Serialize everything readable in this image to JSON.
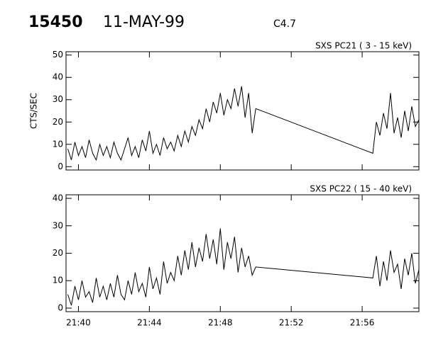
{
  "header": {
    "id": "15450",
    "date": "11-MAY-99",
    "flare_class": "C4.7"
  },
  "chart_data": [
    {
      "type": "line",
      "title": "SXS PC21  (  3 - 15 keV)",
      "ylabel": "CTS/SEC",
      "x": [
        1299.4,
        1299.6,
        1299.8,
        1300.0,
        1300.2,
        1300.4,
        1300.6,
        1300.8,
        1301.0,
        1301.2,
        1301.4,
        1301.6,
        1301.8,
        1302.0,
        1302.2,
        1302.4,
        1302.6,
        1302.8,
        1303.0,
        1303.2,
        1303.4,
        1303.6,
        1303.8,
        1304.0,
        1304.2,
        1304.4,
        1304.6,
        1304.8,
        1305.0,
        1305.2,
        1305.4,
        1305.6,
        1305.8,
        1306.0,
        1306.2,
        1306.4,
        1306.6,
        1306.8,
        1307.0,
        1307.2,
        1307.4,
        1307.6,
        1307.8,
        1308.0,
        1308.2,
        1308.4,
        1308.6,
        1308.8,
        1309.0,
        1309.2,
        1309.4,
        1309.6,
        1309.8,
        1310.0,
        1316.6,
        1316.8,
        1317.0,
        1317.2,
        1317.4,
        1317.6,
        1317.8,
        1318.0,
        1318.2,
        1318.4,
        1318.6,
        1318.8,
        1319.0,
        1319.2
      ],
      "values": [
        8,
        3,
        11,
        5,
        9,
        4,
        12,
        6,
        3,
        10,
        5,
        9,
        4,
        11,
        6,
        3,
        8,
        13,
        5,
        9,
        4,
        12,
        7,
        16,
        6,
        10,
        5,
        13,
        8,
        11,
        7,
        14,
        9,
        16,
        11,
        18,
        14,
        21,
        17,
        26,
        20,
        29,
        24,
        33,
        23,
        30,
        26,
        35,
        27,
        36,
        22,
        33,
        15,
        26,
        6,
        20,
        14,
        24,
        17,
        33,
        15,
        22,
        13,
        25,
        16,
        27,
        18,
        21
      ],
      "color": "#000000",
      "xlim": [
        1299.3,
        1319.2
      ],
      "ylim": [
        -1.5,
        51.5
      ],
      "yticks": [
        0,
        10,
        20,
        30,
        40,
        50
      ]
    },
    {
      "type": "line",
      "title": "SXS PC22  ( 15 - 40 keV)",
      "x": [
        1299.4,
        1299.6,
        1299.8,
        1300.0,
        1300.2,
        1300.4,
        1300.6,
        1300.8,
        1301.0,
        1301.2,
        1301.4,
        1301.6,
        1301.8,
        1302.0,
        1302.2,
        1302.4,
        1302.6,
        1302.8,
        1303.0,
        1303.2,
        1303.4,
        1303.6,
        1303.8,
        1304.0,
        1304.2,
        1304.4,
        1304.6,
        1304.8,
        1305.0,
        1305.2,
        1305.4,
        1305.6,
        1305.8,
        1306.0,
        1306.2,
        1306.4,
        1306.6,
        1306.8,
        1307.0,
        1307.2,
        1307.4,
        1307.6,
        1307.8,
        1308.0,
        1308.2,
        1308.4,
        1308.6,
        1308.8,
        1309.0,
        1309.2,
        1309.4,
        1309.6,
        1309.8,
        1310.0,
        1316.6,
        1316.8,
        1317.0,
        1317.2,
        1317.4,
        1317.6,
        1317.8,
        1318.0,
        1318.2,
        1318.4,
        1318.6,
        1318.8,
        1319.0,
        1319.2
      ],
      "values": [
        5,
        1,
        8,
        3,
        10,
        4,
        6,
        2,
        11,
        4,
        8,
        3,
        9,
        4,
        12,
        5,
        3,
        10,
        5,
        13,
        6,
        9,
        4,
        15,
        7,
        11,
        5,
        17,
        9,
        13,
        10,
        19,
        12,
        21,
        14,
        24,
        15,
        22,
        17,
        27,
        18,
        25,
        16,
        29,
        14,
        24,
        18,
        26,
        13,
        22,
        15,
        19,
        12,
        15,
        11,
        19,
        8,
        17,
        10,
        21,
        13,
        16,
        7,
        18,
        12,
        20,
        9,
        14
      ],
      "color": "#000000",
      "xlim": [
        1299.3,
        1319.2
      ],
      "ylim": [
        -1.3,
        41.3
      ],
      "yticks": [
        0,
        10,
        20,
        30,
        40
      ],
      "xticks": [
        {
          "value": 1300,
          "label": "21:40"
        },
        {
          "value": 1304,
          "label": "21:44"
        },
        {
          "value": 1308,
          "label": "21:48"
        },
        {
          "value": 1312,
          "label": "21:52"
        },
        {
          "value": 1316,
          "label": "21:56"
        }
      ]
    }
  ]
}
